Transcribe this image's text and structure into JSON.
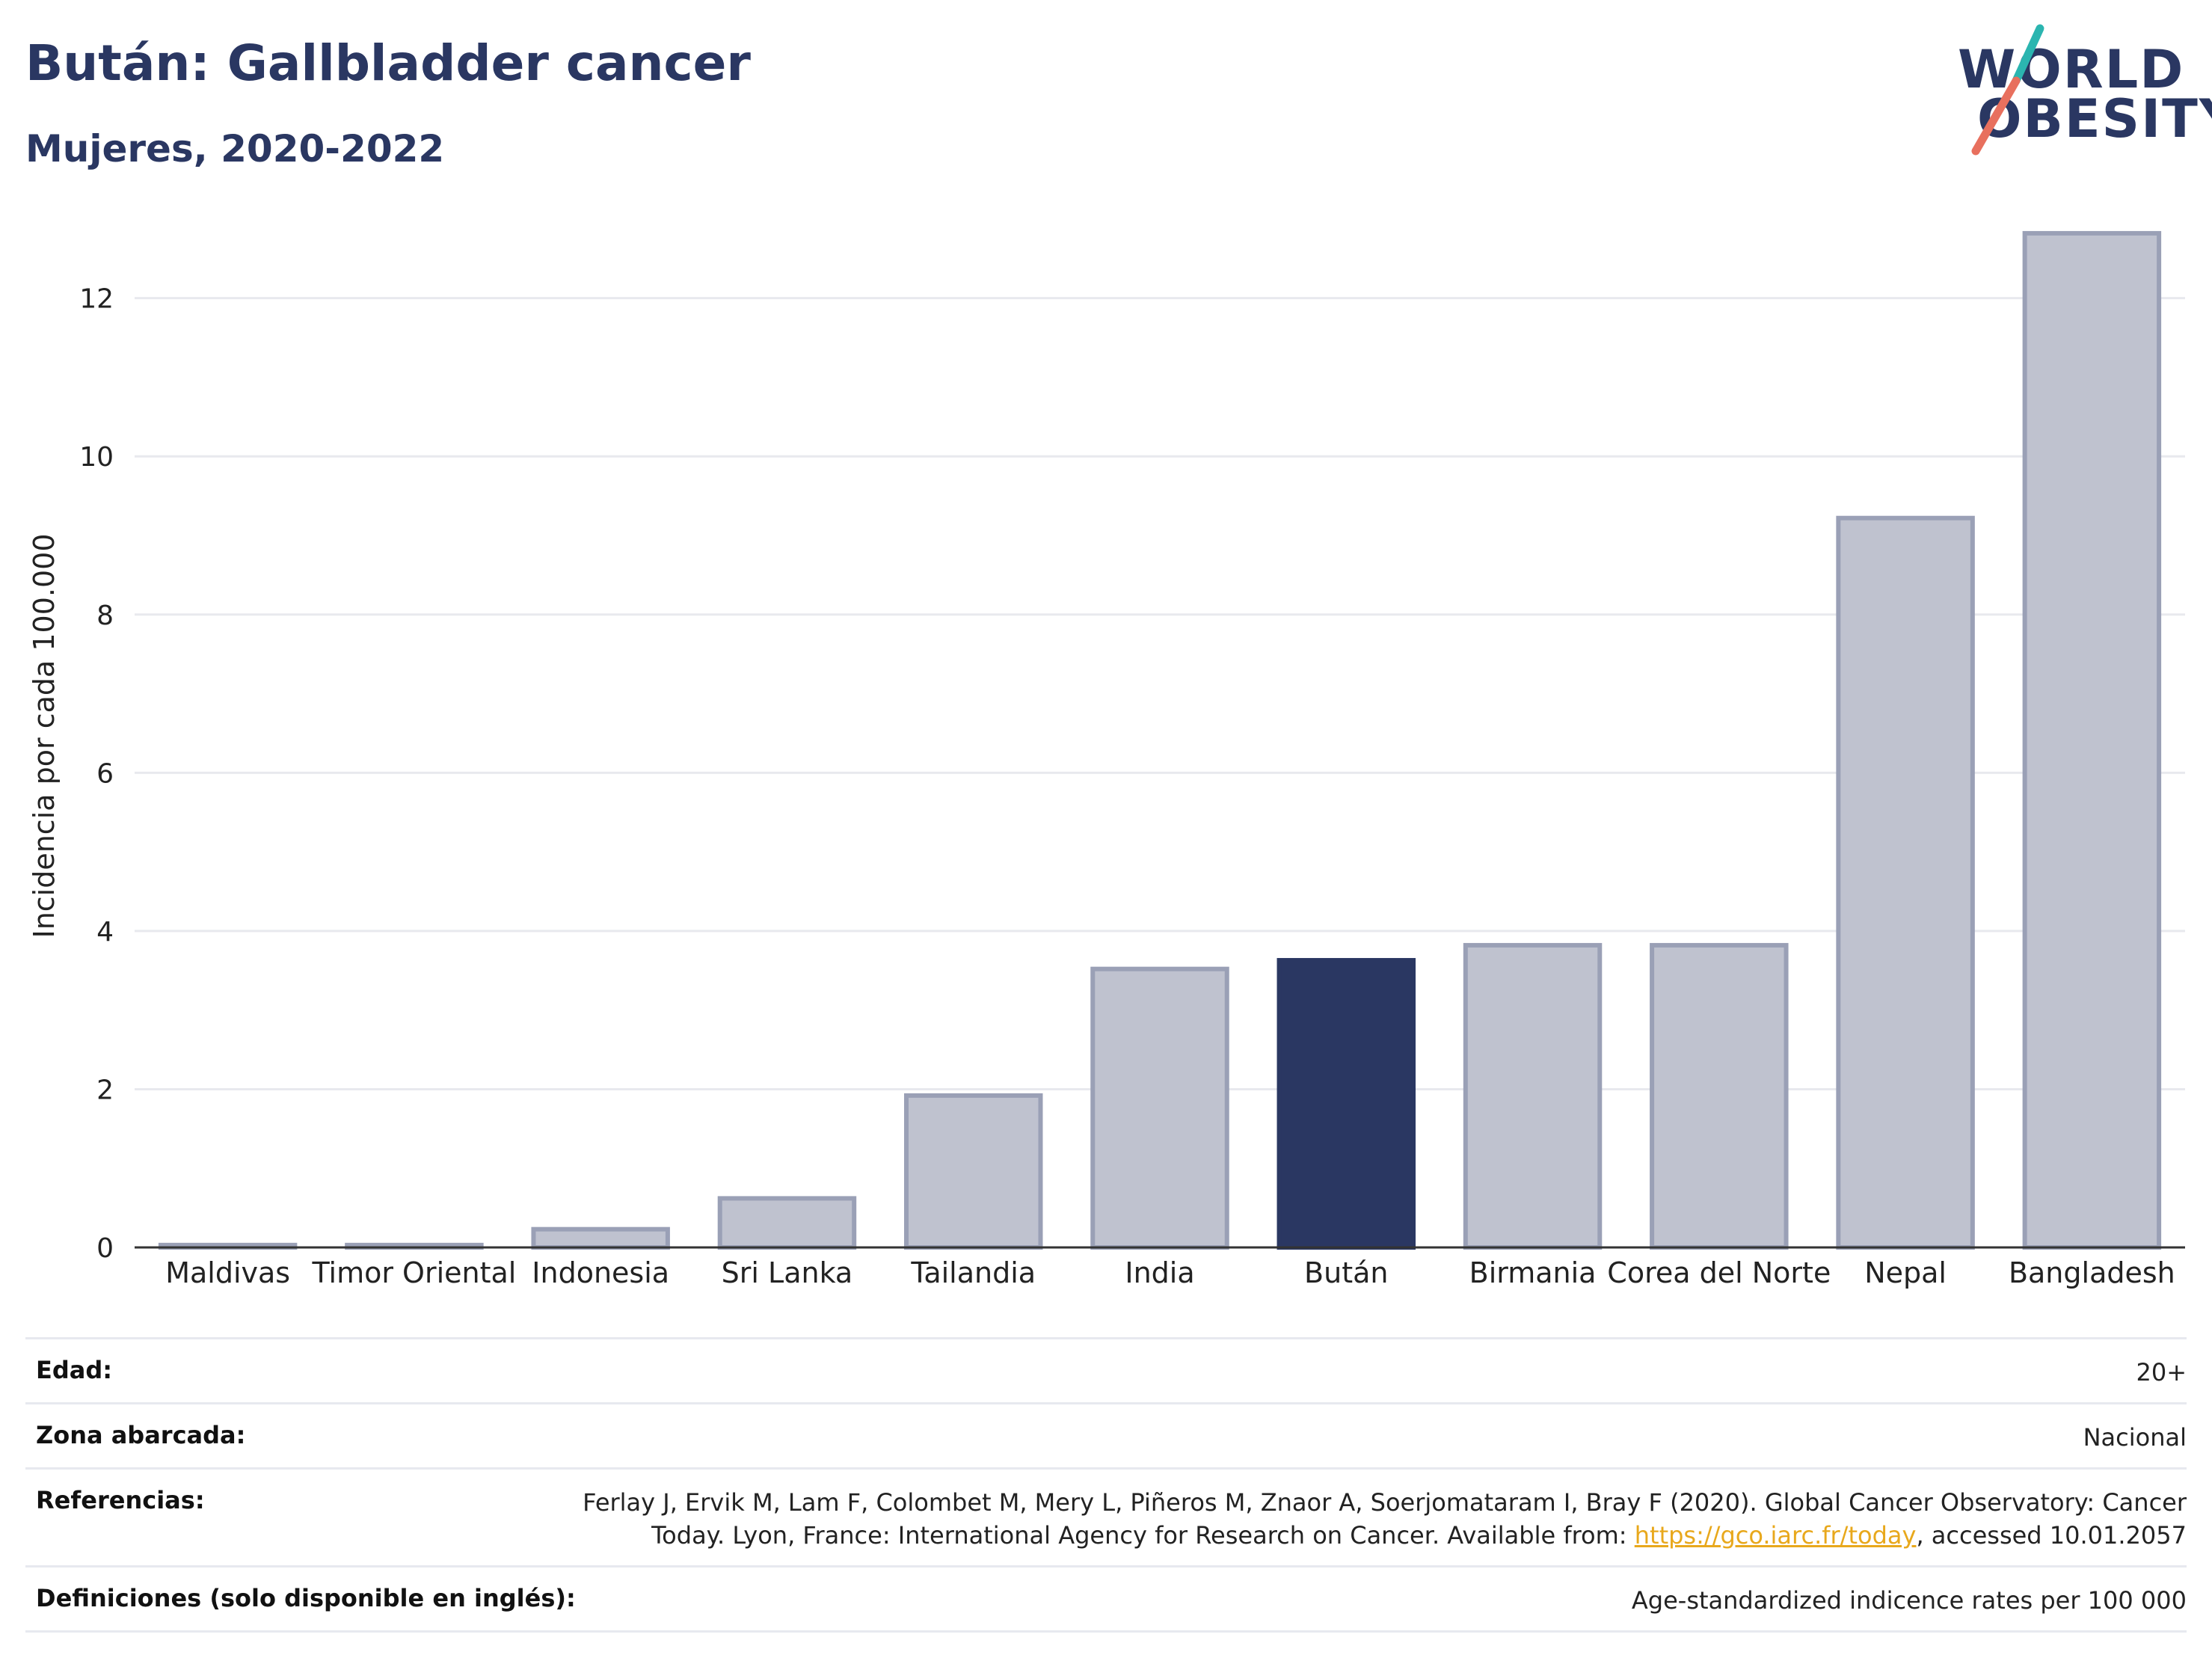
{
  "title": "Bután: Gallbladder cancer",
  "subtitle": "Mujeres, 2020-2022",
  "logo": {
    "line1": "WORLD",
    "line2": "OBESITY",
    "accent_teal": "#2bb5b0",
    "accent_red": "#e8705e"
  },
  "colors": {
    "highlight": "#2a3762",
    "bar_fill": "#bfc2cf",
    "bar_stroke": "#9aa0b6",
    "grid": "#e8e9ee",
    "axis": "#333333"
  },
  "chart_data": {
    "type": "bar",
    "categories": [
      "Maldivas",
      "Timor Oriental",
      "Indonesia",
      "Sri Lanka",
      "Tailandia",
      "India",
      "Bután",
      "Birmania",
      "Corea del Norte",
      "Nepal",
      "Bangladesh"
    ],
    "values": [
      0.03,
      0.03,
      0.23,
      0.62,
      1.92,
      3.52,
      3.63,
      3.82,
      3.82,
      9.22,
      12.82
    ],
    "highlight": "Bután",
    "ylabel": "Incidencia por cada 100.000",
    "xlabel": "",
    "yticks": [
      0,
      2,
      4,
      6,
      8,
      10,
      12
    ],
    "ylim": [
      0,
      13.5
    ],
    "grid": true
  },
  "info": [
    {
      "label": "Edad:",
      "value": "20+"
    },
    {
      "label": "Zona abarcada:",
      "value": "Nacional"
    },
    {
      "label": "Referencias:",
      "value_pre": "Ferlay J, Ervik M, Lam F, Colombet M, Mery L, Piñeros M, Znaor A, Soerjomataram I, Bray F (2020). Global Cancer Observatory: Cancer Today. Lyon, France: International Agency for Research on Cancer. Available from: ",
      "link": "https://gco.iarc.fr/today",
      "value_post": ", accessed 10.01.2057"
    },
    {
      "label": "Definiciones (solo disponible en inglés):",
      "value": "Age-standardized indicence rates per 100 000"
    }
  ]
}
